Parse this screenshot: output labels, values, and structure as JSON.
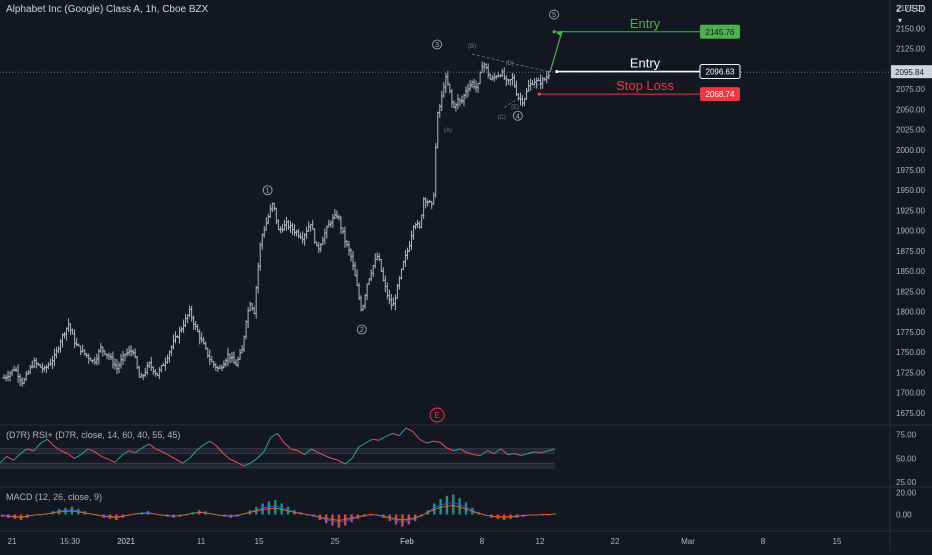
{
  "header": {
    "title": "Alphabet Inc (Google) Class A, 1h, Cboe BZX",
    "currency": "2 USD",
    "currency_menu_icon": "chevron-down-icon"
  },
  "colors": {
    "background": "#131722",
    "bar": "#b2b5be",
    "green": "#4caf50",
    "red": "#f23645",
    "white": "#ffffff",
    "rsi_up": "#26a69a",
    "rsi_down": "#ef5350",
    "grid": "#2a2e39",
    "axis_text": "#b2b5be"
  },
  "chart_data": [
    {
      "type": "bar",
      "subtype": "ohlc",
      "title": "Alphabet Inc (Google) Class A, 1h, Cboe BZX",
      "ylim": [
        1660,
        2185
      ],
      "yticks": [
        1675,
        1700,
        1725,
        1750,
        1775,
        1800,
        1825,
        1850,
        1875,
        1900,
        1925,
        1950,
        1975,
        2000,
        2025,
        2050,
        2075,
        2100,
        2125,
        2150,
        2175
      ],
      "ytick_labels": [
        "1675.00",
        "1700.00",
        "1725.00",
        "1750.00",
        "1775.00",
        "1800.00",
        "1825.00",
        "1850.00",
        "1875.00",
        "1900.00",
        "1925.00",
        "1950.00",
        "1975.00",
        "2000.00",
        "2025.00",
        "2050.00",
        "2075.00",
        "2100.00",
        "2125.00",
        "2150.00",
        "2175.00"
      ],
      "xtick_labels": [
        "21",
        "15:30",
        "2021",
        "11",
        "15",
        "25",
        "Feb",
        "8",
        "12",
        "22",
        "Mar",
        "8",
        "15"
      ],
      "close_path": [
        [
          0,
          1718
        ],
        [
          8,
          1730
        ],
        [
          14,
          1712
        ],
        [
          22,
          1738
        ],
        [
          30,
          1728
        ],
        [
          38,
          1745
        ],
        [
          42,
          1765
        ],
        [
          48,
          1785
        ],
        [
          53,
          1760
        ],
        [
          60,
          1748
        ],
        [
          67,
          1738
        ],
        [
          72,
          1755
        ],
        [
          78,
          1745
        ],
        [
          84,
          1730
        ],
        [
          90,
          1748
        ],
        [
          96,
          1752
        ],
        [
          101,
          1715
        ],
        [
          108,
          1735
        ],
        [
          114,
          1722
        ],
        [
          120,
          1740
        ],
        [
          126,
          1762
        ],
        [
          132,
          1780
        ],
        [
          138,
          1800
        ],
        [
          142,
          1782
        ],
        [
          148,
          1760
        ],
        [
          154,
          1738
        ],
        [
          160,
          1728
        ],
        [
          167,
          1748
        ],
        [
          172,
          1733
        ],
        [
          177,
          1752
        ],
        [
          180,
          1790
        ],
        [
          183,
          1812
        ],
        [
          186,
          1800
        ],
        [
          188,
          1840
        ],
        [
          191,
          1890
        ],
        [
          196,
          1915
        ],
        [
          200,
          1935
        ],
        [
          204,
          1900
        ],
        [
          210,
          1908
        ],
        [
          216,
          1900
        ],
        [
          222,
          1892
        ],
        [
          228,
          1910
        ],
        [
          233,
          1875
        ],
        [
          238,
          1895
        ],
        [
          243,
          1912
        ],
        [
          248,
          1920
        ],
        [
          253,
          1890
        ],
        [
          258,
          1868
        ],
        [
          262,
          1835
        ],
        [
          266,
          1800
        ],
        [
          270,
          1835
        ],
        [
          274,
          1855
        ],
        [
          278,
          1870
        ],
        [
          282,
          1838
        ],
        [
          286,
          1815
        ],
        [
          289,
          1805
        ],
        [
          293,
          1833
        ],
        [
          297,
          1860
        ],
        [
          301,
          1880
        ],
        [
          305,
          1912
        ],
        [
          309,
          1903
        ],
        [
          312,
          1940
        ],
        [
          316,
          1935
        ],
        [
          319,
          1928
        ],
        [
          322,
          2040
        ],
        [
          325,
          2060
        ],
        [
          328,
          2090
        ],
        [
          331,
          2075
        ],
        [
          334,
          2050
        ],
        [
          337,
          2062
        ],
        [
          340,
          2058
        ],
        [
          344,
          2076
        ],
        [
          348,
          2083
        ],
        [
          352,
          2075
        ],
        [
          356,
          2110
        ],
        [
          359,
          2098
        ],
        [
          362,
          2085
        ],
        [
          366,
          2092
        ],
        [
          370,
          2095
        ],
        [
          374,
          2082
        ],
        [
          378,
          2088
        ],
        [
          382,
          2065
        ],
        [
          386,
          2060
        ],
        [
          390,
          2078
        ],
        [
          394,
          2085
        ],
        [
          398,
          2083
        ],
        [
          402,
          2087
        ],
        [
          406,
          2096
        ]
      ],
      "annotations": {
        "waves": [
          {
            "label": "1",
            "x": 196,
            "price": 1950
          },
          {
            "label": "2",
            "x": 266,
            "price": 1778
          },
          {
            "label": "3",
            "x": 322,
            "price": 2130
          },
          {
            "label": "4",
            "x": 382,
            "price": 2042
          },
          {
            "label": "5",
            "x": 409,
            "price": 2167
          }
        ],
        "sub_waves": [
          {
            "label": "(A)",
            "x": 330,
            "price": 2022
          },
          {
            "label": "(B)",
            "x": 348,
            "price": 2126
          },
          {
            "label": "(C)",
            "x": 370,
            "price": 2038
          },
          {
            "label": "(D)",
            "x": 376,
            "price": 2105
          },
          {
            "label": "(E)",
            "x": 380,
            "price": 2051
          }
        ],
        "levels": [
          {
            "name": "Entry",
            "price": 2145.76,
            "label": "2145.76",
            "color": "#4caf50"
          },
          {
            "name": "Entry",
            "price": 2096.63,
            "label": "2096.63",
            "color": "#ffffff"
          },
          {
            "name": "Stop Loss",
            "price": 2068.74,
            "label": "2068.74",
            "color": "#f23645"
          }
        ],
        "current_price": {
          "price": 2095.84,
          "label": "2095.84"
        },
        "event_marker": "E"
      }
    },
    {
      "type": "line",
      "title": "(D7R) RSI+ (D7R, close, 14, 60, 40, 55, 45)",
      "ylim": [
        20,
        85
      ],
      "yticks": [
        25,
        50,
        75
      ],
      "ytick_labels": [
        "25.00",
        "50.00",
        "75.00"
      ],
      "bands": [
        45,
        40,
        55,
        60
      ],
      "values": [
        45,
        52,
        48,
        55,
        60,
        58,
        66,
        70,
        63,
        58,
        55,
        50,
        54,
        60,
        57,
        52,
        49,
        46,
        53,
        58,
        56,
        61,
        65,
        60,
        57,
        53,
        49,
        45,
        50,
        58,
        64,
        68,
        63,
        55,
        49,
        46,
        42,
        45,
        50,
        57,
        72,
        76,
        66,
        60,
        58,
        54,
        60,
        56,
        53,
        50,
        48,
        44,
        50,
        62,
        66,
        70,
        69,
        73,
        76,
        74,
        82,
        78,
        70,
        66,
        68,
        67,
        61,
        58,
        60,
        56,
        54,
        53,
        58,
        55,
        60,
        54,
        55,
        53,
        55,
        57,
        56,
        58,
        60
      ]
    },
    {
      "type": "bar",
      "title": "MACD (12, 26, close, 9)",
      "ylim": [
        -15,
        25
      ],
      "yticks": [
        0,
        20
      ],
      "ytick_labels": [
        "0.00",
        "20.00"
      ],
      "values": [
        -2,
        -3,
        -4,
        -5,
        -3,
        -1,
        0,
        1,
        3,
        5,
        6,
        7,
        5,
        3,
        1,
        -1,
        -3,
        -4,
        -5,
        -3,
        -1,
        1,
        2,
        3,
        1,
        -1,
        -2,
        -3,
        -2,
        0,
        2,
        4,
        3,
        1,
        -1,
        -2,
        -3,
        -2,
        1,
        4,
        7,
        10,
        12,
        13,
        10,
        7,
        4,
        2,
        0,
        -2,
        -5,
        -8,
        -10,
        -12,
        -10,
        -7,
        -4,
        -2,
        0,
        -1,
        -3,
        -6,
        -9,
        -11,
        -9,
        -6,
        -2,
        4,
        10,
        14,
        17,
        18,
        15,
        11,
        6,
        2,
        -1,
        -3,
        -4,
        -5,
        -4,
        -3,
        -2,
        -1,
        -1,
        0,
        0,
        1
      ]
    }
  ]
}
